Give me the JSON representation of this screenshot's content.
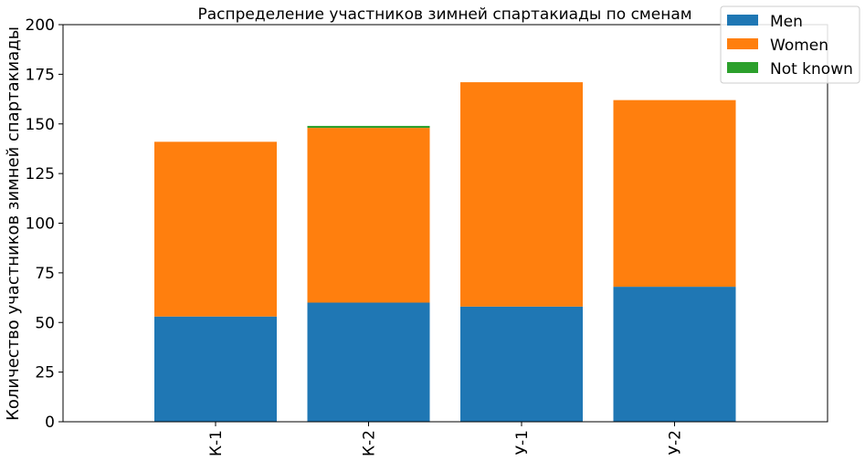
{
  "chart_data": {
    "type": "bar",
    "stacked": true,
    "title": "Распределение участников зимней спартакиады по сменам",
    "xlabel": "",
    "ylabel": "Количество участников зимней спартакиады",
    "categories": [
      "К-1",
      "К-2",
      "У-1",
      "У-2"
    ],
    "series": [
      {
        "name": "Men",
        "color": "#1f77b4",
        "values": [
          53,
          60,
          58,
          68
        ]
      },
      {
        "name": "Women",
        "color": "#ff7f0e",
        "values": [
          88,
          88,
          113,
          94
        ]
      },
      {
        "name": "Not known",
        "color": "#2ca02c",
        "values": [
          0,
          1,
          0,
          0
        ]
      }
    ],
    "ylim": [
      0,
      200
    ],
    "yticks": [
      "0",
      "25",
      "50",
      "75",
      "100",
      "125",
      "150",
      "175",
      "200"
    ],
    "grid": false,
    "legend_position": "top-right"
  }
}
